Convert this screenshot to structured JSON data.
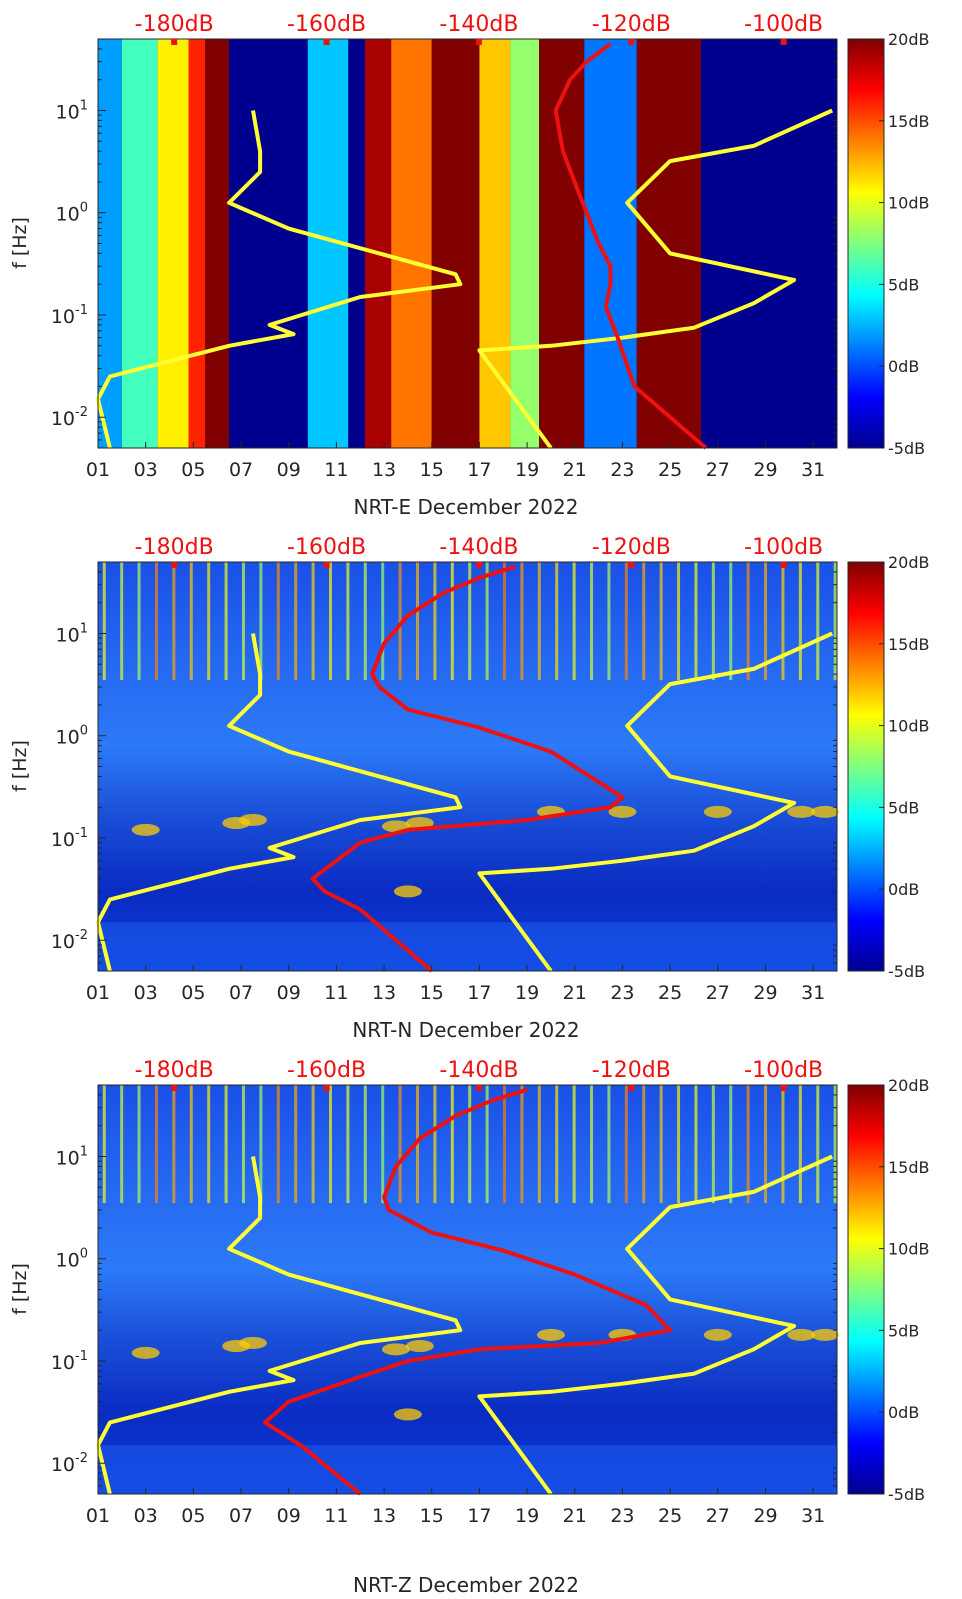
{
  "chart_data": [
    {
      "type": "heatmap",
      "title": "",
      "xlabel": "NRT-E December 2022",
      "ylabel": "f [Hz]",
      "xlim": [
        1,
        32
      ],
      "ylim": [
        0.005,
        50
      ],
      "yscale": "log",
      "x_ticks": [
        "01",
        "03",
        "05",
        "07",
        "09",
        "11",
        "13",
        "15",
        "17",
        "19",
        "21",
        "23",
        "25",
        "27",
        "29",
        "31"
      ],
      "y_ticks": [
        {
          "value": 0.01,
          "base": "10",
          "exp": "-2"
        },
        {
          "value": 0.1,
          "base": "10",
          "exp": "-1"
        },
        {
          "value": 1,
          "base": "10",
          "exp": "0"
        },
        {
          "value": 10,
          "base": "10",
          "exp": "1"
        }
      ],
      "top_axis": {
        "ticks": [
          "-180dB",
          "-160dB",
          "-140dB",
          "-120dB",
          "-100dB"
        ],
        "range": [
          -190,
          -93
        ],
        "color": "#ee1111"
      },
      "colorbar": {
        "range": [
          -5,
          20
        ],
        "ticks": [
          "-5dB",
          "0dB",
          "5dB",
          "10dB",
          "15dB",
          "20dB"
        ]
      },
      "reference_curves": [
        {
          "name": "noise-model-upper",
          "color": "#ffff33",
          "x": [
            31.8,
            28.5,
            25,
            23.2,
            25,
            30.2,
            28.5,
            26,
            23,
            20,
            17,
            20
          ],
          "y": [
            10,
            4.5,
            3.2,
            1.25,
            0.4,
            0.22,
            0.13,
            0.075,
            0.06,
            0.05,
            0.045,
            0.005
          ]
        },
        {
          "name": "noise-model-lower",
          "color": "#ffff33",
          "x": [
            7.5,
            7.8,
            7.8,
            6.5,
            9,
            16,
            16.2,
            12,
            8.2,
            9.2,
            6.5,
            1.5,
            1,
            1.5
          ],
          "y": [
            10,
            4,
            2.5,
            1.25,
            0.7,
            0.25,
            0.2,
            0.15,
            0.08,
            0.065,
            0.05,
            0.025,
            0.015,
            0.005
          ]
        }
      ],
      "series": [
        {
          "name": "red-psd",
          "color": "#ee1111",
          "x": [
            22.5,
            21.5,
            20.8,
            20.2,
            20.5,
            21.2,
            22,
            22.5,
            22.5,
            22.3,
            22.8,
            23.5,
            26.5
          ],
          "y": [
            45,
            30,
            20,
            10,
            4,
            1.5,
            0.5,
            0.3,
            0.2,
            0.12,
            0.06,
            0.02,
            0.005
          ]
        }
      ],
      "heatmap_bands": [
        {
          "x0": 1,
          "x1": 2,
          "level": 2
        },
        {
          "x0": 2,
          "x1": 3.5,
          "level": 6
        },
        {
          "x0": 3.5,
          "x1": 4.8,
          "level": 11
        },
        {
          "x0": 4.8,
          "x1": 5.5,
          "level": 16
        },
        {
          "x0": 5.5,
          "x1": 6.5,
          "level": 20
        },
        {
          "x0": 6.5,
          "x1": 9.8,
          "level": -5
        },
        {
          "x0": 9.8,
          "x1": 11.5,
          "level": 3
        },
        {
          "x0": 11.5,
          "x1": 12.2,
          "level": -5
        },
        {
          "x0": 12.2,
          "x1": 13.3,
          "level": 19
        },
        {
          "x0": 13.3,
          "x1": 15,
          "level": 14
        },
        {
          "x0": 15,
          "x1": 17,
          "level": 20
        },
        {
          "x0": 17,
          "x1": 18.3,
          "level": 12
        },
        {
          "x0": 18.3,
          "x1": 19.5,
          "level": 8
        },
        {
          "x0": 19.5,
          "x1": 21.4,
          "level": 20
        },
        {
          "x0": 21.4,
          "x1": 23.6,
          "level": 1
        },
        {
          "x0": 23.6,
          "x1": 26.3,
          "level": 20
        },
        {
          "x0": 26.3,
          "x1": 32,
          "level": -5
        }
      ]
    },
    {
      "type": "heatmap",
      "title": "",
      "xlabel": "NRT-N December 2022",
      "ylabel": "f [Hz]",
      "xlim": [
        1,
        32
      ],
      "ylim": [
        0.005,
        50
      ],
      "yscale": "log",
      "x_ticks": [
        "01",
        "03",
        "05",
        "07",
        "09",
        "11",
        "13",
        "15",
        "17",
        "19",
        "21",
        "23",
        "25",
        "27",
        "29",
        "31"
      ],
      "y_ticks": [
        {
          "value": 0.01,
          "base": "10",
          "exp": "-2"
        },
        {
          "value": 0.1,
          "base": "10",
          "exp": "-1"
        },
        {
          "value": 1,
          "base": "10",
          "exp": "0"
        },
        {
          "value": 10,
          "base": "10",
          "exp": "1"
        }
      ],
      "top_axis": {
        "ticks": [
          "-180dB",
          "-160dB",
          "-140dB",
          "-120dB",
          "-100dB"
        ],
        "range": [
          -190,
          -93
        ],
        "color": "#ee1111"
      },
      "colorbar": {
        "range": [
          -5,
          20
        ],
        "ticks": [
          "-5dB",
          "0dB",
          "5dB",
          "10dB",
          "15dB",
          "20dB"
        ]
      },
      "reference_curves": [
        {
          "name": "noise-model-upper",
          "color": "#ffff33",
          "x": [
            31.8,
            28.5,
            25,
            23.2,
            25,
            30.2,
            28.5,
            26,
            23,
            20,
            17,
            20
          ],
          "y": [
            10,
            4.5,
            3.2,
            1.25,
            0.4,
            0.22,
            0.13,
            0.075,
            0.06,
            0.05,
            0.045,
            0.005
          ]
        },
        {
          "name": "noise-model-lower",
          "color": "#ffff33",
          "x": [
            7.5,
            7.8,
            7.8,
            6.5,
            9,
            16,
            16.2,
            12,
            8.2,
            9.2,
            6.5,
            1.5,
            1,
            1.5
          ],
          "y": [
            10,
            4,
            2.5,
            1.25,
            0.7,
            0.25,
            0.2,
            0.15,
            0.08,
            0.065,
            0.05,
            0.025,
            0.015,
            0.005
          ]
        }
      ],
      "series": [
        {
          "name": "red-psd",
          "color": "#ee1111",
          "x": [
            18.5,
            17,
            15.5,
            14,
            13,
            12.5,
            12.8,
            14,
            17,
            20,
            23,
            22.5,
            19,
            14,
            12,
            10,
            10.5,
            12,
            15
          ],
          "y": [
            45,
            35,
            25,
            15,
            8,
            4,
            3,
            1.8,
            1.2,
            0.7,
            0.25,
            0.2,
            0.15,
            0.12,
            0.09,
            0.04,
            0.03,
            0.02,
            0.005
          ]
        }
      ],
      "heatmap_bands": []
    },
    {
      "type": "heatmap",
      "title": "",
      "xlabel": "NRT-Z December 2022",
      "ylabel": "f [Hz]",
      "xlim": [
        1,
        32
      ],
      "ylim": [
        0.005,
        50
      ],
      "yscale": "log",
      "x_ticks": [
        "01",
        "03",
        "05",
        "07",
        "09",
        "11",
        "13",
        "15",
        "17",
        "19",
        "21",
        "23",
        "25",
        "27",
        "29",
        "31"
      ],
      "y_ticks": [
        {
          "value": 0.01,
          "base": "10",
          "exp": "-2"
        },
        {
          "value": 0.1,
          "base": "10",
          "exp": "-1"
        },
        {
          "value": 1,
          "base": "10",
          "exp": "0"
        },
        {
          "value": 10,
          "base": "10",
          "exp": "1"
        }
      ],
      "top_axis": {
        "ticks": [
          "-180dB",
          "-160dB",
          "-140dB",
          "-120dB",
          "-100dB"
        ],
        "range": [
          -190,
          -93
        ],
        "color": "#ee1111"
      },
      "colorbar": {
        "range": [
          -5,
          20
        ],
        "ticks": [
          "-5dB",
          "0dB",
          "5dB",
          "10dB",
          "15dB",
          "20dB"
        ]
      },
      "reference_curves": [
        {
          "name": "noise-model-upper",
          "color": "#ffff33",
          "x": [
            31.8,
            28.5,
            25,
            23.2,
            25,
            30.2,
            28.5,
            26,
            23,
            20,
            17,
            20
          ],
          "y": [
            10,
            4.5,
            3.2,
            1.25,
            0.4,
            0.22,
            0.13,
            0.075,
            0.06,
            0.05,
            0.045,
            0.005
          ]
        },
        {
          "name": "noise-model-lower",
          "color": "#ffff33",
          "x": [
            7.5,
            7.8,
            7.8,
            6.5,
            9,
            16,
            16.2,
            12,
            8.2,
            9.2,
            6.5,
            1.5,
            1,
            1.5
          ],
          "y": [
            10,
            4,
            2.5,
            1.25,
            0.7,
            0.25,
            0.2,
            0.15,
            0.08,
            0.065,
            0.05,
            0.025,
            0.015,
            0.005
          ]
        }
      ],
      "series": [
        {
          "name": "red-psd",
          "color": "#ee1111",
          "x": [
            19,
            17.5,
            16,
            14.5,
            13.5,
            13,
            13.2,
            15,
            18,
            21,
            24,
            25,
            22,
            17,
            14,
            12,
            9,
            8,
            9.5,
            12
          ],
          "y": [
            45,
            35,
            25,
            15,
            8,
            4,
            3,
            1.8,
            1.2,
            0.7,
            0.35,
            0.2,
            0.15,
            0.13,
            0.1,
            0.07,
            0.04,
            0.025,
            0.015,
            0.005
          ]
        }
      ],
      "heatmap_bands": []
    }
  ]
}
